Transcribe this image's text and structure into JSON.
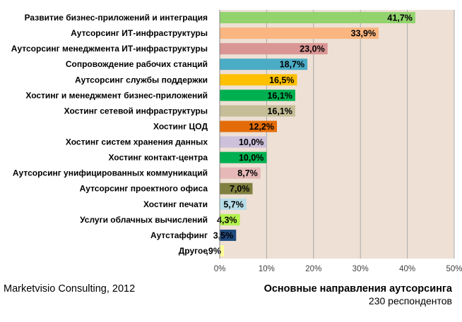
{
  "source": "Marketvisio Consulting, 2012",
  "caption": {
    "title": "Основные направления аутсорсинга",
    "subtitle": "230 респондентов"
  },
  "chart_data": {
    "type": "bar",
    "orientation": "horizontal",
    "categories": [
      "Развитие бизнес-приложений и интеграция",
      "Аутсорсинг ИТ-инфраструктуры",
      "Аутсорсинг менеджмента ИТ-инфраструктуры",
      "Сопровождение рабочих станций",
      "Аутсорсинг службы поддержки",
      "Хостинг и менеджмент бизнес-приложений",
      "Хостинг сетевой инфраструктуры",
      "Хостинг ЦОД",
      "Хостинг систем хранения данных",
      "Хостинг контакт-центра",
      "Аутсорсинг унифицированных коммуникаций",
      "Аутсорсинг проектного офиса",
      "Хостинг печати",
      "Услуги облачных вычислений",
      "Аутстаффинг",
      "Другое"
    ],
    "values": [
      41.7,
      33.9,
      23.0,
      18.7,
      16.5,
      16.1,
      16.1,
      12.2,
      10.0,
      10.0,
      8.7,
      7.0,
      5.7,
      4.3,
      3.5,
      0.9
    ],
    "value_labels": [
      "41,7%",
      "33,9%",
      "23,0%",
      "18,7%",
      "16,5%",
      "16,1%",
      "16,1%",
      "12,2%",
      "10,0%",
      "10,0%",
      "8,7%",
      "7,0%",
      "5,7%",
      "4,3%",
      "3,5%",
      ",9%"
    ],
    "colors": [
      "#92d36e",
      "#fab580",
      "#d99694",
      "#4bacc6",
      "#ffc000",
      "#00b050",
      "#c4bd97",
      "#e36c09",
      "#ccc0da",
      "#00b050",
      "#e6b9b8",
      "#7f7f3f",
      "#b7dee8",
      "#b3f14d",
      "#1f497d",
      "#ffff99"
    ],
    "xlim": [
      0,
      50
    ],
    "x_ticks": [
      "0%",
      "10%",
      "20%",
      "30%",
      "40%",
      "50%"
    ],
    "grid": true,
    "plot_background": "#eee0d4",
    "grid_color": "#aaaaaa"
  }
}
